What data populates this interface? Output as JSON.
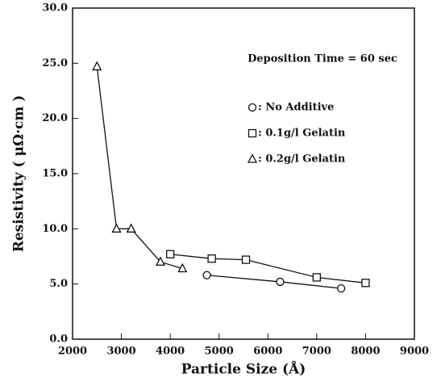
{
  "chart_data": {
    "type": "line",
    "annotation": "Deposition Time = 60 sec",
    "xlabel": "Particle Size (Å)",
    "ylabel": "Resistivity ( μΩ·cm )",
    "xlim": [
      2000,
      9000
    ],
    "xticks": [
      2000,
      3000,
      4000,
      5000,
      6000,
      7000,
      8000,
      9000
    ],
    "ylim": [
      0,
      30
    ],
    "yticks": [
      {
        "value": 0,
        "label": "0.0"
      },
      {
        "value": 5,
        "label": "5.0"
      },
      {
        "value": 10,
        "label": "10.0"
      },
      {
        "value": 15,
        "label": "15.0"
      },
      {
        "value": 20,
        "label": "20.0"
      },
      {
        "value": 25,
        "label": "25.0"
      },
      {
        "value": 30,
        "label": "30.0"
      }
    ],
    "series": [
      {
        "name": ": No Additive",
        "marker": "circle",
        "color": "#111111",
        "x": [
          4750,
          6250,
          7500
        ],
        "values": [
          5.8,
          5.2,
          4.6
        ]
      },
      {
        "name": ": 0.1g/l Gelatin",
        "marker": "square",
        "color": "#111111",
        "x": [
          4000,
          4850,
          5550,
          7000,
          8000
        ],
        "values": [
          7.7,
          7.3,
          7.2,
          5.6,
          5.1
        ]
      },
      {
        "name": ": 0.2g/l Gelatin",
        "marker": "triangle",
        "color": "#111111",
        "x": [
          2500,
          2900,
          3200,
          3800,
          4250
        ],
        "values": [
          24.7,
          10.0,
          10.0,
          7.0,
          6.4
        ]
      }
    ]
  }
}
